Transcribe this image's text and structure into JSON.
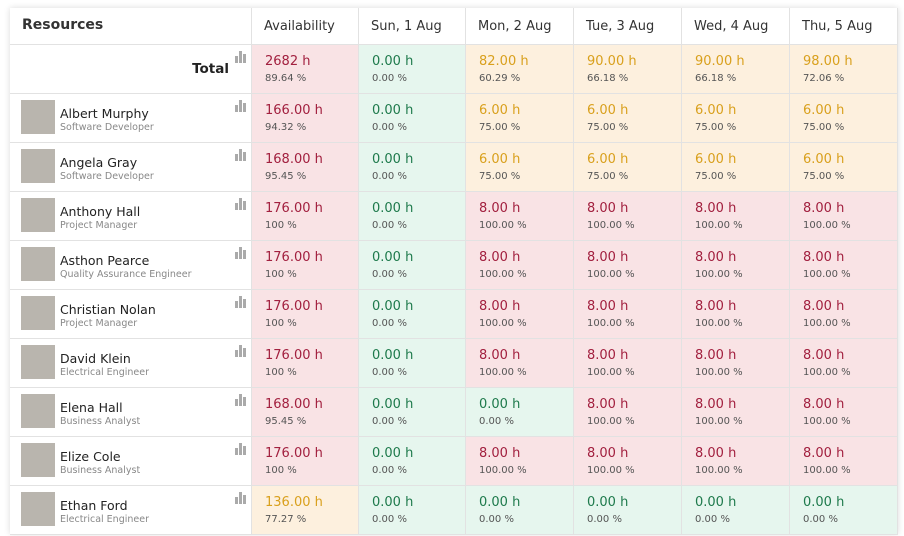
{
  "header": {
    "resources": "Resources",
    "columns": [
      "Availability",
      "Sun, 1 Aug",
      "Mon, 2 Aug",
      "Tue, 3 Aug",
      "Wed, 4 Aug",
      "Thu, 5 Aug"
    ]
  },
  "total": {
    "label": "Total",
    "cells": [
      {
        "hours": "2682 h",
        "percent": "89.64 %",
        "color": "red"
      },
      {
        "hours": "0.00 h",
        "percent": "0.00 %",
        "color": "green"
      },
      {
        "hours": "82.00 h",
        "percent": "60.29 %",
        "color": "orange"
      },
      {
        "hours": "90.00 h",
        "percent": "66.18 %",
        "color": "orange"
      },
      {
        "hours": "90.00 h",
        "percent": "66.18 %",
        "color": "orange"
      },
      {
        "hours": "98.00 h",
        "percent": "72.06 %",
        "color": "orange"
      }
    ]
  },
  "rows": [
    {
      "name": "Albert Murphy",
      "role": "Software Developer",
      "cells": [
        {
          "hours": "166.00 h",
          "percent": "94.32 %",
          "color": "red"
        },
        {
          "hours": "0.00 h",
          "percent": "0.00 %",
          "color": "green"
        },
        {
          "hours": "6.00 h",
          "percent": "75.00 %",
          "color": "orange"
        },
        {
          "hours": "6.00 h",
          "percent": "75.00 %",
          "color": "orange"
        },
        {
          "hours": "6.00 h",
          "percent": "75.00 %",
          "color": "orange"
        },
        {
          "hours": "6.00 h",
          "percent": "75.00 %",
          "color": "orange"
        }
      ]
    },
    {
      "name": "Angela Gray",
      "role": "Software Developer",
      "cells": [
        {
          "hours": "168.00 h",
          "percent": "95.45 %",
          "color": "red"
        },
        {
          "hours": "0.00 h",
          "percent": "0.00 %",
          "color": "green"
        },
        {
          "hours": "6.00 h",
          "percent": "75.00 %",
          "color": "orange"
        },
        {
          "hours": "6.00 h",
          "percent": "75.00 %",
          "color": "orange"
        },
        {
          "hours": "6.00 h",
          "percent": "75.00 %",
          "color": "orange"
        },
        {
          "hours": "6.00 h",
          "percent": "75.00 %",
          "color": "orange"
        }
      ]
    },
    {
      "name": "Anthony Hall",
      "role": "Project Manager",
      "cells": [
        {
          "hours": "176.00 h",
          "percent": "100 %",
          "color": "red"
        },
        {
          "hours": "0.00 h",
          "percent": "0.00 %",
          "color": "green"
        },
        {
          "hours": "8.00 h",
          "percent": "100.00 %",
          "color": "red"
        },
        {
          "hours": "8.00 h",
          "percent": "100.00 %",
          "color": "red"
        },
        {
          "hours": "8.00 h",
          "percent": "100.00 %",
          "color": "red"
        },
        {
          "hours": "8.00 h",
          "percent": "100.00 %",
          "color": "red"
        }
      ]
    },
    {
      "name": "Asthon Pearce",
      "role": "Quality Assurance Engineer",
      "cells": [
        {
          "hours": "176.00 h",
          "percent": "100 %",
          "color": "red"
        },
        {
          "hours": "0.00 h",
          "percent": "0.00 %",
          "color": "green"
        },
        {
          "hours": "8.00 h",
          "percent": "100.00 %",
          "color": "red"
        },
        {
          "hours": "8.00 h",
          "percent": "100.00 %",
          "color": "red"
        },
        {
          "hours": "8.00 h",
          "percent": "100.00 %",
          "color": "red"
        },
        {
          "hours": "8.00 h",
          "percent": "100.00 %",
          "color": "red"
        }
      ]
    },
    {
      "name": "Christian Nolan",
      "role": "Project Manager",
      "cells": [
        {
          "hours": "176.00 h",
          "percent": "100 %",
          "color": "red"
        },
        {
          "hours": "0.00 h",
          "percent": "0.00 %",
          "color": "green"
        },
        {
          "hours": "8.00 h",
          "percent": "100.00 %",
          "color": "red"
        },
        {
          "hours": "8.00 h",
          "percent": "100.00 %",
          "color": "red"
        },
        {
          "hours": "8.00 h",
          "percent": "100.00 %",
          "color": "red"
        },
        {
          "hours": "8.00 h",
          "percent": "100.00 %",
          "color": "red"
        }
      ]
    },
    {
      "name": "David Klein",
      "role": "Electrical Engineer",
      "cells": [
        {
          "hours": "176.00 h",
          "percent": "100 %",
          "color": "red"
        },
        {
          "hours": "0.00 h",
          "percent": "0.00 %",
          "color": "green"
        },
        {
          "hours": "8.00 h",
          "percent": "100.00 %",
          "color": "red"
        },
        {
          "hours": "8.00 h",
          "percent": "100.00 %",
          "color": "red"
        },
        {
          "hours": "8.00 h",
          "percent": "100.00 %",
          "color": "red"
        },
        {
          "hours": "8.00 h",
          "percent": "100.00 %",
          "color": "red"
        }
      ]
    },
    {
      "name": "Elena Hall",
      "role": "Business Analyst",
      "cells": [
        {
          "hours": "168.00 h",
          "percent": "95.45 %",
          "color": "red"
        },
        {
          "hours": "0.00 h",
          "percent": "0.00 %",
          "color": "green"
        },
        {
          "hours": "0.00 h",
          "percent": "0.00 %",
          "color": "green"
        },
        {
          "hours": "8.00 h",
          "percent": "100.00 %",
          "color": "red"
        },
        {
          "hours": "8.00 h",
          "percent": "100.00 %",
          "color": "red"
        },
        {
          "hours": "8.00 h",
          "percent": "100.00 %",
          "color": "red"
        }
      ]
    },
    {
      "name": "Elize Cole",
      "role": "Business Analyst",
      "cells": [
        {
          "hours": "176.00 h",
          "percent": "100 %",
          "color": "red"
        },
        {
          "hours": "0.00 h",
          "percent": "0.00 %",
          "color": "green"
        },
        {
          "hours": "8.00 h",
          "percent": "100.00 %",
          "color": "red"
        },
        {
          "hours": "8.00 h",
          "percent": "100.00 %",
          "color": "red"
        },
        {
          "hours": "8.00 h",
          "percent": "100.00 %",
          "color": "red"
        },
        {
          "hours": "8.00 h",
          "percent": "100.00 %",
          "color": "red"
        }
      ]
    },
    {
      "name": "Ethan Ford",
      "role": "Electrical Engineer",
      "cells": [
        {
          "hours": "136.00 h",
          "percent": "77.27 %",
          "color": "orange"
        },
        {
          "hours": "0.00 h",
          "percent": "0.00 %",
          "color": "green"
        },
        {
          "hours": "0.00 h",
          "percent": "0.00 %",
          "color": "green"
        },
        {
          "hours": "0.00 h",
          "percent": "0.00 %",
          "color": "green"
        },
        {
          "hours": "0.00 h",
          "percent": "0.00 %",
          "color": "green"
        },
        {
          "hours": "0.00 h",
          "percent": "0.00 %",
          "color": "green"
        }
      ]
    }
  ]
}
